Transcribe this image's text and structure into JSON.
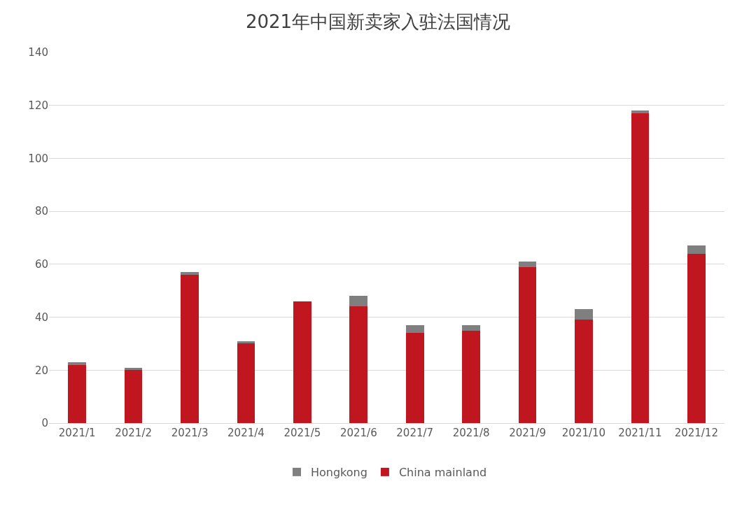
{
  "chart_data": {
    "type": "bar",
    "title": "2021年中国新卖家入驻法国情况",
    "stacked": true,
    "categories": [
      "2021/1",
      "2021/2",
      "2021/3",
      "2021/4",
      "2021/5",
      "2021/6",
      "2021/7",
      "2021/8",
      "2021/9",
      "2021/10",
      "2021/11",
      "2021/12"
    ],
    "series": [
      {
        "name": "China mainland",
        "color": "#c0161f",
        "values": [
          22,
          20,
          56,
          30,
          46,
          44,
          34,
          35,
          59,
          39,
          117,
          64
        ]
      },
      {
        "name": "Hongkong",
        "color": "#7f7f7f",
        "values": [
          1,
          1,
          1,
          1,
          0,
          4,
          3,
          2,
          2,
          4,
          1,
          3
        ]
      }
    ],
    "ylim": [
      0,
      140
    ],
    "yticks": [
      0,
      20,
      40,
      60,
      80,
      100,
      120,
      140
    ],
    "grid": "y",
    "legend": "bottom"
  }
}
